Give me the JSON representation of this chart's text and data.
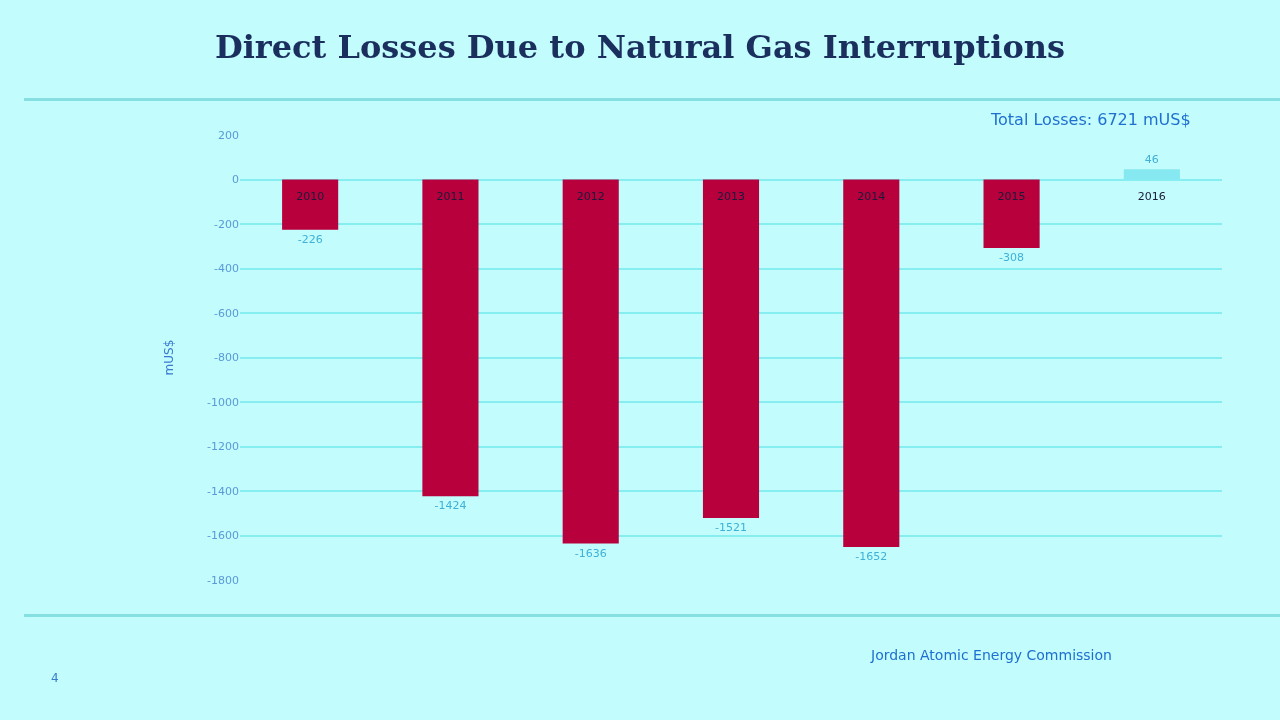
{
  "chart_data": {
    "type": "bar",
    "title": "Direct Losses Due to Natural Gas Interruptions",
    "ylabel": "mUS$",
    "categories": [
      "2010",
      "2011",
      "2012",
      "2013",
      "2014",
      "2015",
      "2016"
    ],
    "values": [
      -226,
      -1424,
      -1636,
      -1521,
      -1652,
      -308,
      46
    ],
    "colors": [
      "#b8003c",
      "#b8003c",
      "#b8003c",
      "#b8003c",
      "#b8003c",
      "#b8003c",
      "#86e8f0"
    ],
    "data_labels": true,
    "ylim": [
      -1800,
      200
    ],
    "yticks": [
      200,
      0,
      -200,
      -400,
      -600,
      -800,
      -1000,
      -1200,
      -1400,
      -1600,
      -1800
    ],
    "grid": "y",
    "legend": false,
    "annotations": [
      "Total Losses: 6721 mUS$",
      "Jordan Atomic Energy Commission",
      "4"
    ]
  }
}
